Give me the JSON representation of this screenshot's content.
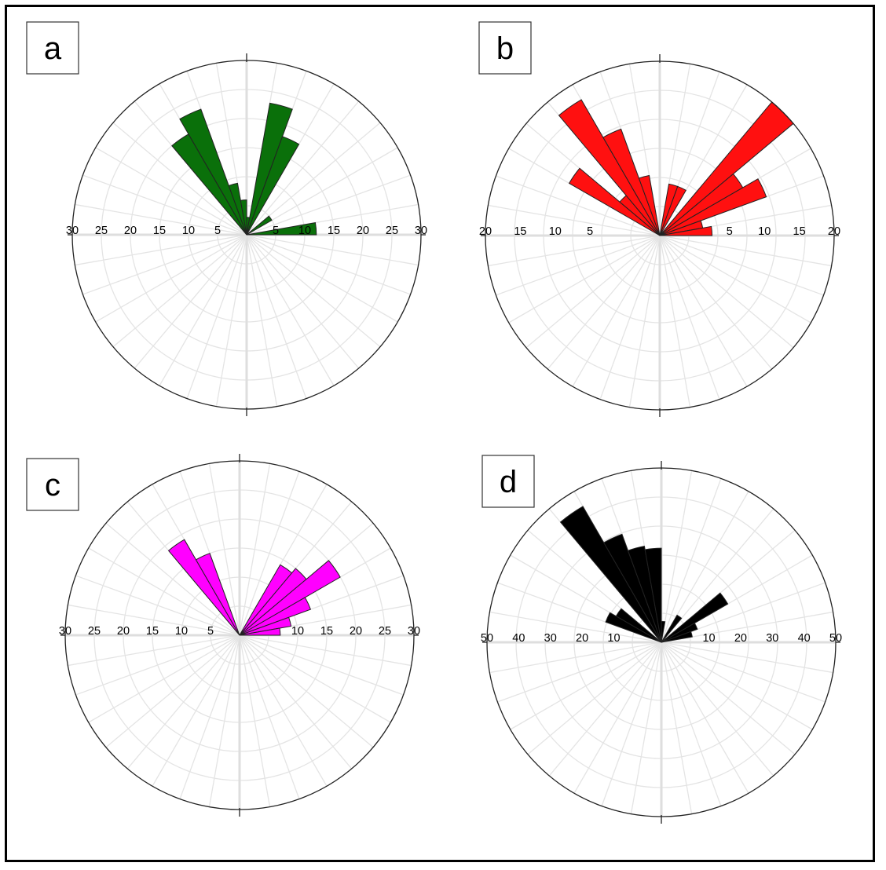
{
  "chart_data": [
    {
      "type": "rose",
      "panel_label": "a",
      "color": "#0a700a",
      "r_max": 30,
      "tick_labels": [
        "30",
        "25",
        "20",
        "15",
        "10",
        "5",
        "",
        "5",
        "10",
        "15",
        "20",
        "25",
        "30"
      ],
      "bin_width_deg": 10,
      "bins": [
        {
          "azimuth_start": -40,
          "value": 20
        },
        {
          "azimuth_start": -30,
          "value": 23
        },
        {
          "azimuth_start": -20,
          "value": 9
        },
        {
          "azimuth_start": -10,
          "value": 6
        },
        {
          "azimuth_start": 0,
          "value": 3
        },
        {
          "azimuth_start": 10,
          "value": 23
        },
        {
          "azimuth_start": 20,
          "value": 18
        },
        {
          "azimuth_start": 50,
          "value": 5
        },
        {
          "azimuth_start": 80,
          "value": 12
        }
      ]
    },
    {
      "type": "rose",
      "panel_label": "b",
      "color": "#ff1010",
      "r_max": 20,
      "tick_labels": [
        "20",
        "15",
        "10",
        "5",
        "",
        "",
        "",
        "5",
        "10",
        "15",
        "20"
      ],
      "bin_width_deg": 10,
      "bins": [
        {
          "azimuth_start": -60,
          "value": 12
        },
        {
          "azimuth_start": -50,
          "value": 6
        },
        {
          "azimuth_start": -40,
          "value": 18
        },
        {
          "azimuth_start": -30,
          "value": 13
        },
        {
          "azimuth_start": -20,
          "value": 7
        },
        {
          "azimuth_start": 10,
          "value": 6
        },
        {
          "azimuth_start": 20,
          "value": 6
        },
        {
          "azimuth_start": 40,
          "value": 20
        },
        {
          "azimuth_start": 50,
          "value": 11
        },
        {
          "azimuth_start": 60,
          "value": 13
        },
        {
          "azimuth_start": 70,
          "value": 5
        },
        {
          "azimuth_start": 80,
          "value": 6
        }
      ]
    },
    {
      "type": "rose",
      "panel_label": "c",
      "color": "#ff00ff",
      "r_max": 30,
      "tick_labels": [
        "30",
        "25",
        "20",
        "15",
        "10",
        "5",
        "",
        "",
        "10",
        "15",
        "20",
        "25",
        "30"
      ],
      "bin_width_deg": 10,
      "bins": [
        {
          "azimuth_start": -40,
          "value": 19
        },
        {
          "azimuth_start": -30,
          "value": 15
        },
        {
          "azimuth_start": 30,
          "value": 14
        },
        {
          "azimuth_start": 40,
          "value": 15
        },
        {
          "azimuth_start": 50,
          "value": 20
        },
        {
          "azimuth_start": 60,
          "value": 13
        },
        {
          "azimuth_start": 70,
          "value": 9
        },
        {
          "azimuth_start": 80,
          "value": 7
        }
      ]
    },
    {
      "type": "rose",
      "panel_label": "d",
      "color": "#000000",
      "r_max": 50,
      "tick_labels": [
        "50",
        "40",
        "30",
        "20",
        "10",
        "",
        "",
        "10",
        "20",
        "30",
        "40",
        "50"
      ],
      "bin_width_deg": 10,
      "bins": [
        {
          "azimuth_start": -40,
          "value": 45
        },
        {
          "azimuth_start": -30,
          "value": 33
        },
        {
          "azimuth_start": -20,
          "value": 28
        },
        {
          "azimuth_start": -10,
          "value": 27
        },
        {
          "azimuth_start": -60,
          "value": 15
        },
        {
          "azimuth_start": -70,
          "value": 17
        },
        {
          "azimuth_start": 0,
          "value": 6
        },
        {
          "azimuth_start": 30,
          "value": 9
        },
        {
          "azimuth_start": 50,
          "value": 22
        },
        {
          "azimuth_start": 60,
          "value": 11
        },
        {
          "azimuth_start": 70,
          "value": 9
        }
      ]
    }
  ]
}
